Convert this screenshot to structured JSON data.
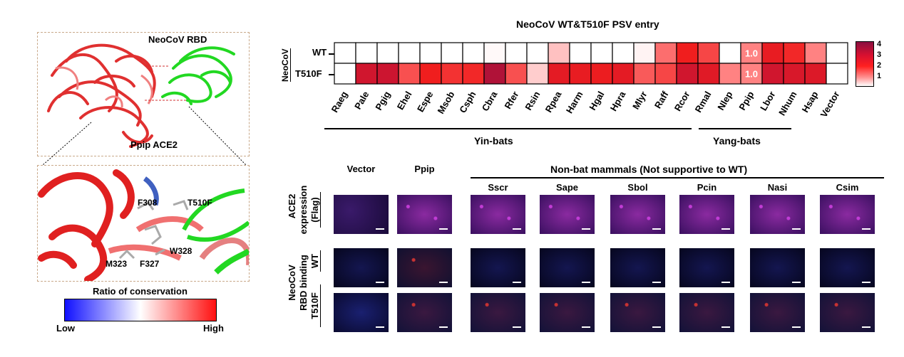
{
  "left_panel": {
    "rbd_label": "NeoCoV RBD",
    "ace2_label": "Ppip ACE2",
    "residues": [
      "F308",
      "T510F",
      "W328",
      "M323",
      "F327"
    ],
    "conservation_title": "Ratio of conservation",
    "low_label": "Low",
    "high_label": "High"
  },
  "heatmap": {
    "title": "NeoCoV WT&T510F PSV entry",
    "row_group_label": "NeoCoV",
    "legend_ticks": [
      "4",
      "3",
      "2",
      "1"
    ],
    "yin_label": "Yin-bats",
    "yang_label": "Yang-bats",
    "cell_annotation": "1.0"
  },
  "chart_data": {
    "type": "heatmap",
    "title": "NeoCoV WT&T510F PSV entry",
    "x": [
      "Raeg",
      "Pale",
      "Pgig",
      "Ehel",
      "Espe",
      "Msob",
      "Csph",
      "Cbra",
      "Rfer",
      "Rsin",
      "Rpea",
      "Harm",
      "Hgal",
      "Hpra",
      "Mlyr",
      "Raff",
      "Rcor",
      "Rmal",
      "Nlep",
      "Ppip",
      "Lbor",
      "Nhum",
      "Hsap",
      "Vector"
    ],
    "y": [
      "WT",
      "T510F"
    ],
    "values": [
      [
        0.0,
        0.0,
        0.0,
        0.0,
        0.0,
        0.0,
        0.0,
        0.05,
        0.0,
        0.0,
        0.5,
        0.0,
        0.0,
        0.0,
        0.1,
        1.2,
        2.0,
        1.6,
        0.0,
        1.0,
        2.2,
        1.9,
        1.0,
        0.0
      ],
      [
        0.0,
        2.8,
        2.9,
        1.5,
        2.0,
        1.8,
        1.9,
        3.6,
        1.5,
        0.4,
        2.3,
        2.2,
        2.1,
        2.3,
        1.4,
        1.6,
        2.8,
        2.4,
        1.0,
        1.0,
        2.8,
        2.6,
        2.5,
        0.0
      ]
    ],
    "colorbar": {
      "range": [
        0,
        4.5
      ],
      "ticks": [
        1,
        2,
        3,
        4
      ]
    }
  },
  "microscopy": {
    "group_label": "Non-bat mammals (Not supportive to WT)",
    "columns": [
      "Vector",
      "Ppip",
      "Sscr",
      "Sape",
      "Sbol",
      "Pcin",
      "Nasi",
      "Csim"
    ],
    "rows": {
      "ace2_line1": "ACE2",
      "ace2_line2": "expression",
      "ace2_line3": "(Flag)",
      "rbd_line1": "NeoCoV",
      "rbd_line2": "RBD binding",
      "wt": "WT",
      "t510f": "T510F"
    },
    "colors": {
      "ace2": "#c23cd6",
      "dapi": "#1a1a8a",
      "rbd": "#c83232"
    }
  }
}
